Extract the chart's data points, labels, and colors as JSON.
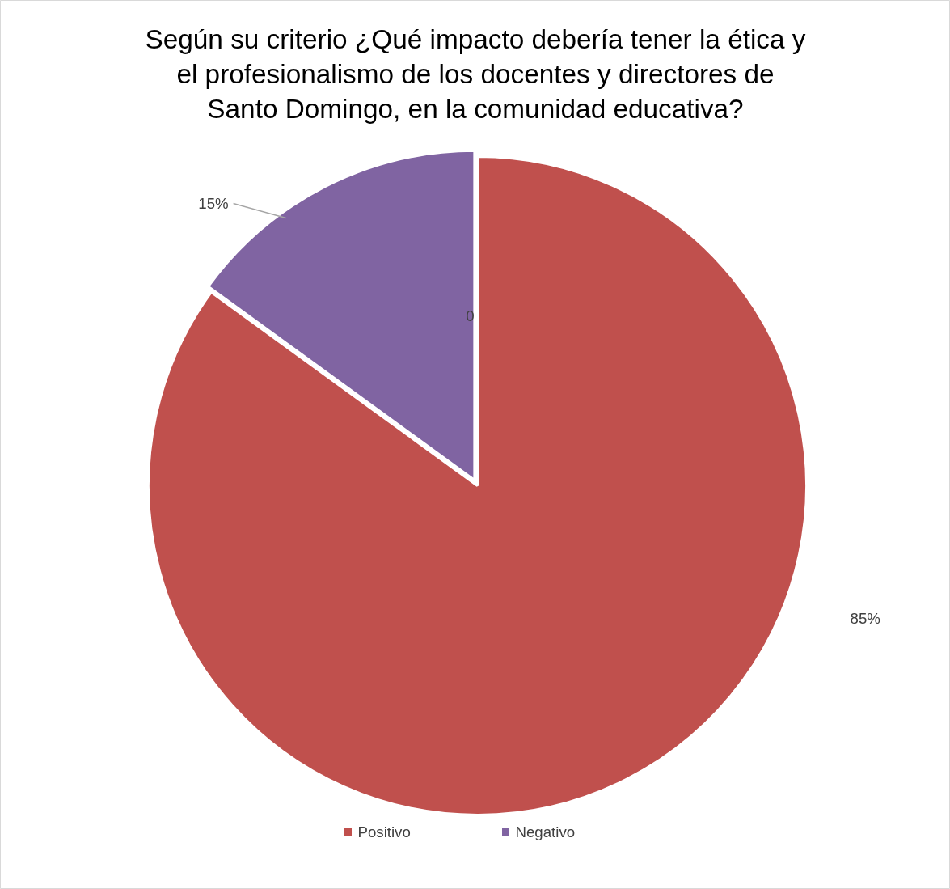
{
  "chart_data": {
    "type": "pie",
    "title": "Según su criterio ¿Qué impacto debería tener la ética y\nel profesionalismo de los docentes y directores de\nSanto Domingo, en la comunidad educativa?",
    "categories": [
      "Positivo",
      "Negativo"
    ],
    "values": [
      85,
      15
    ],
    "colors": [
      "#c0504d",
      "#8064a2"
    ],
    "value_labels": [
      "85%",
      "15%"
    ],
    "annotations": [
      "0"
    ],
    "legend": "bottom"
  }
}
